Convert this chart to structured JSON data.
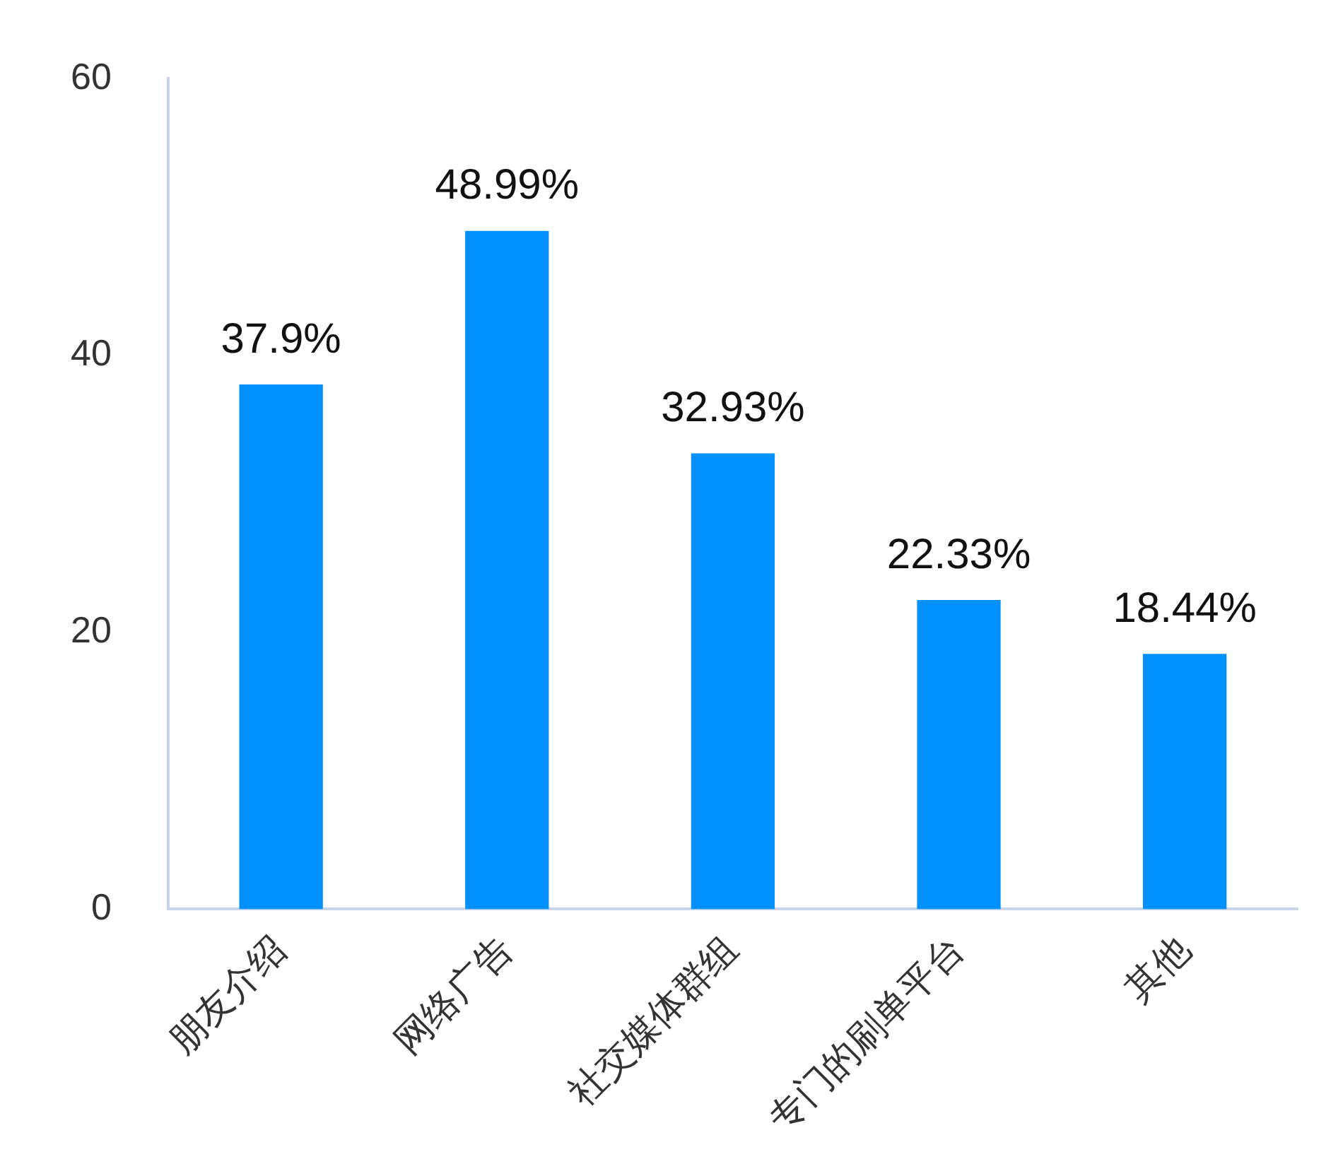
{
  "chart_data": {
    "type": "bar",
    "categories": [
      "朋友介绍",
      "网络广告",
      "社交媒体群组",
      "专门的刷单平台",
      "其他"
    ],
    "values": [
      37.9,
      48.99,
      32.93,
      22.33,
      18.44
    ],
    "value_labels": [
      "37.9%",
      "48.99%",
      "32.93%",
      "22.33%",
      "18.44%"
    ],
    "color": "#0091ff",
    "ylim": [
      0,
      60
    ],
    "yticks": [
      0,
      20,
      40,
      60
    ],
    "grid": false,
    "legend": false
  }
}
